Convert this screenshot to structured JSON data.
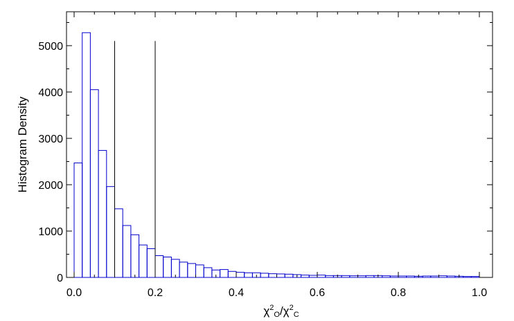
{
  "chart_data": {
    "type": "bar",
    "title": "",
    "xlabel": {
      "chi": "χ",
      "sup1": "2",
      "sub1": "O",
      "slash": "/χ",
      "sup2": "2",
      "sub2": "C"
    },
    "ylabel": "Histogram Density",
    "xlim": [
      0.0,
      1.0
    ],
    "ylim": [
      0,
      5500
    ],
    "bin_width": 0.02,
    "bin_edges_start": 0.0,
    "xticks": [
      "0.0",
      "0.2",
      "0.4",
      "0.6",
      "0.8",
      "1.0"
    ],
    "yticks": [
      "0",
      "1000",
      "2000",
      "3000",
      "4000",
      "5000"
    ],
    "xtick_values": [
      0.0,
      0.2,
      0.4,
      0.6,
      0.8,
      1.0
    ],
    "ytick_values": [
      0,
      1000,
      2000,
      3000,
      4000,
      5000
    ],
    "x_minor_step": 0.05,
    "y_minor_step": 500,
    "values": [
      2470,
      5280,
      4050,
      2740,
      1960,
      1480,
      1120,
      920,
      700,
      620,
      470,
      440,
      390,
      330,
      300,
      270,
      210,
      160,
      170,
      130,
      110,
      100,
      100,
      90,
      80,
      75,
      70,
      60,
      50,
      45,
      50,
      40,
      40,
      40,
      35,
      35,
      40,
      40,
      35,
      30,
      30,
      30,
      25,
      30,
      30,
      35,
      30,
      25,
      20,
      20
    ],
    "vertical_lines": [
      {
        "x": 0.1,
        "y_top": 5100
      },
      {
        "x": 0.2,
        "y_top": 5100
      }
    ],
    "bar_color": "#0000cc",
    "line_color": "#000000"
  }
}
